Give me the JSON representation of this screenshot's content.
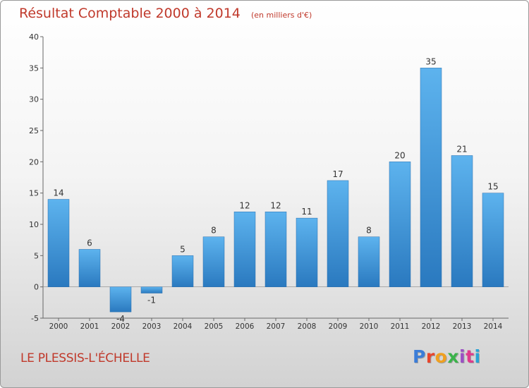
{
  "chart_data": {
    "type": "bar",
    "title": "Résultat Comptable 2000 à 2014",
    "subtitle": "(en milliers d'€)",
    "categories": [
      "2000",
      "2001",
      "2002",
      "2003",
      "2004",
      "2005",
      "2006",
      "2007",
      "2008",
      "2009",
      "2010",
      "2011",
      "2012",
      "2013",
      "2014"
    ],
    "values": [
      14,
      6,
      -4,
      -1,
      5,
      8,
      12,
      12,
      11,
      17,
      8,
      20,
      35,
      21,
      15
    ],
    "value_labels": [
      "14",
      "6",
      "-4",
      "-1",
      "5",
      "8",
      "12",
      "12",
      "11",
      "17",
      "8",
      "20",
      "35",
      "21",
      "15"
    ],
    "ylim": [
      -5,
      40
    ],
    "yticks": [
      -5,
      0,
      5,
      10,
      15,
      20,
      25,
      30,
      35,
      40
    ],
    "grid": false,
    "xlabel": "",
    "ylabel": "",
    "bar_color": "#3a8fd6"
  },
  "footer": {
    "city": "LE PLESSIS-L'ÉCHELLE",
    "brand": "Proxiti",
    "brand_colors": [
      "#3b7dd8",
      "#e8452c",
      "#f0a020",
      "#3bb34a",
      "#9b4fc4",
      "#e03a8c",
      "#29a3d6"
    ]
  }
}
